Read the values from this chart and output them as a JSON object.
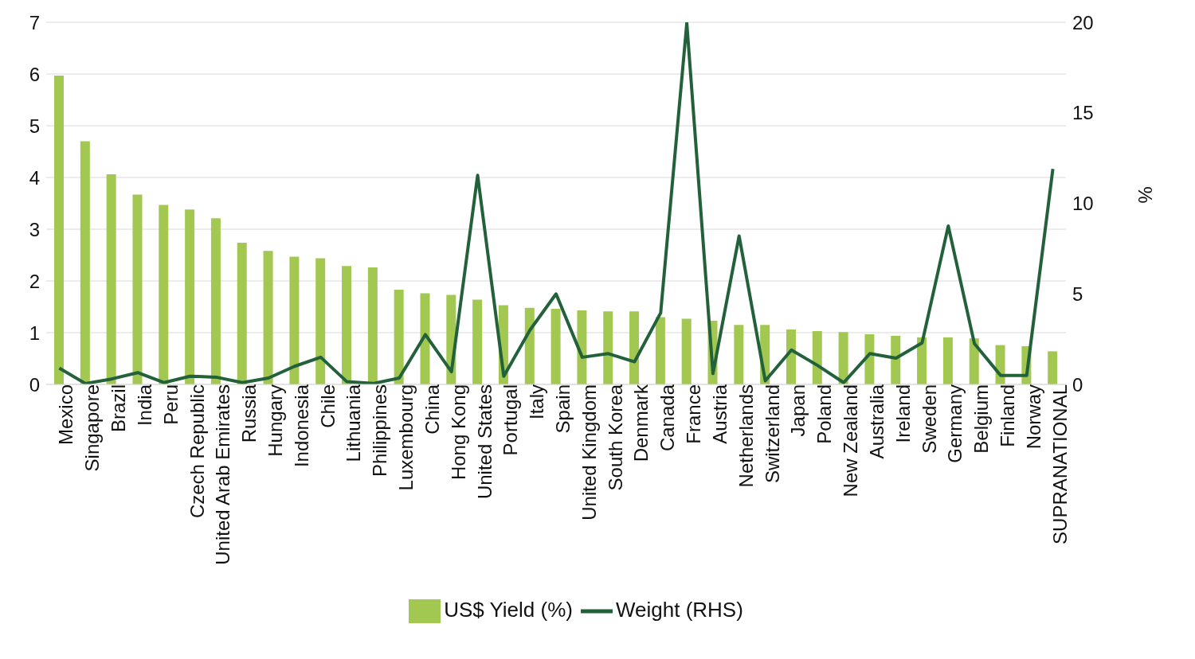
{
  "chart_data": {
    "type": "bar",
    "categories": [
      "Mexico",
      "Singapore",
      "Brazil",
      "India",
      "Peru",
      "Czech Republic",
      "United Arab Emirates",
      "Russia",
      "Hungary",
      "Indonesia",
      "Chile",
      "Lithuania",
      "Philippines",
      "Luxembourg",
      "China",
      "Hong Kong",
      "United States",
      "Portugal",
      "Italy",
      "Spain",
      "United Kingdom",
      "South Korea",
      "Denmark",
      "Canada",
      "France",
      "Austria",
      "Netherlands",
      "Switzerland",
      "Japan",
      "Poland",
      "New Zealand",
      "Australia",
      "Ireland",
      "Sweden",
      "Germany",
      "Belgium",
      "Finland",
      "Norway",
      "SUPRANATIONAL"
    ],
    "series": [
      {
        "name": "US$ Yield (%)",
        "color": "#a2c852",
        "values": [
          5.97,
          4.7,
          4.06,
          3.67,
          3.47,
          3.38,
          3.21,
          2.74,
          2.58,
          2.47,
          2.44,
          2.29,
          2.26,
          1.83,
          1.76,
          1.73,
          1.64,
          1.53,
          1.48,
          1.46,
          1.43,
          1.41,
          1.41,
          1.3,
          1.27,
          1.23,
          1.15,
          1.15,
          1.06,
          1.03,
          1.01,
          0.97,
          0.94,
          0.91,
          0.91,
          0.89,
          0.76,
          0.74,
          0.64
        ]
      },
      {
        "name": "Weight (RHS)",
        "type": "line",
        "axis": "y2",
        "color": "#22613a",
        "values": [
          0.9,
          0.05,
          0.3,
          0.65,
          0.1,
          0.45,
          0.4,
          0.1,
          0.35,
          1.0,
          1.5,
          0.15,
          0.05,
          0.35,
          2.75,
          0.7,
          11.55,
          0.45,
          3.0,
          5.0,
          1.5,
          1.7,
          1.25,
          3.95,
          19.95,
          0.6,
          8.2,
          0.2,
          1.9,
          1.05,
          0.1,
          1.7,
          1.45,
          2.3,
          8.75,
          2.25,
          0.5,
          0.5,
          11.9
        ]
      }
    ],
    "ylim": [
      0,
      7
    ],
    "yticks": [
      0,
      1,
      2,
      3,
      4,
      5,
      6,
      7
    ],
    "y2lim": [
      0,
      20
    ],
    "y2ticks": [
      0,
      5,
      10,
      15,
      20
    ],
    "y2label": "%",
    "grid": "y",
    "legend": "bottom",
    "marker": "none",
    "line_style": "solid"
  }
}
